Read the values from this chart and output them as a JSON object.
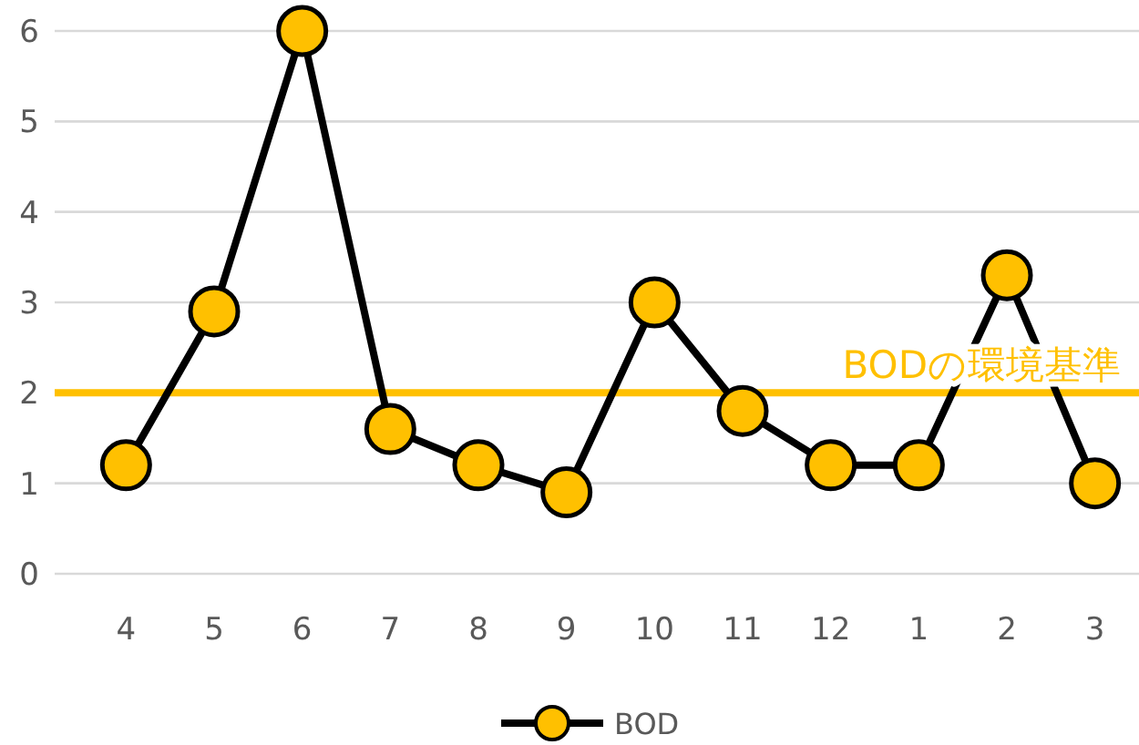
{
  "chart_data": {
    "type": "line",
    "categories": [
      "4",
      "5",
      "6",
      "7",
      "8",
      "9",
      "10",
      "11",
      "12",
      "1",
      "2",
      "3"
    ],
    "series": [
      {
        "name": "BOD",
        "color": "#ffc000",
        "values": [
          1.2,
          2.9,
          6,
          1.6,
          1.2,
          0.9,
          3,
          1.8,
          1.2,
          1.2,
          3.3,
          1.0
        ]
      }
    ],
    "marker": "circle",
    "line_style": "solid",
    "ylim": [
      0,
      6
    ],
    "yticks": [
      0,
      1,
      2,
      3,
      4,
      5,
      6
    ],
    "grid": "y",
    "legend": "bottom",
    "ref_lines": [
      {
        "axis": "y",
        "value": 2,
        "label": "BODの環境基準",
        "color": "#ffc000"
      }
    ]
  }
}
